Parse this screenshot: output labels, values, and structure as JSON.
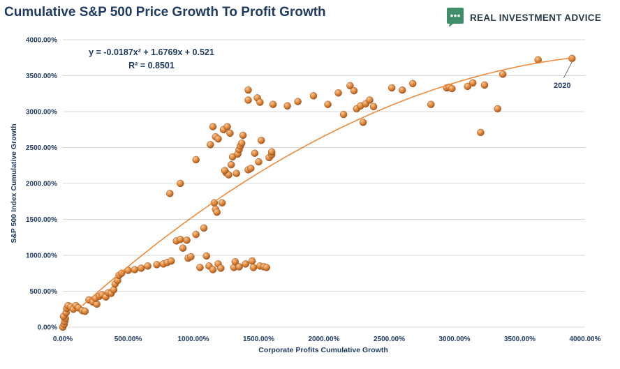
{
  "header": {
    "title": "Cumulative S&P 500 Price Growth To Profit Growth",
    "logo_text": "REAL INVESTMENT ADVICE",
    "logo_icon": "chat-bubble-icon",
    "logo_color": "#3f8f6b"
  },
  "chart_data": {
    "type": "scatter",
    "title": "Cumulative S&P 500 Price Growth To Profit Growth",
    "xlabel": "Corporate Profits Cumulative Growth",
    "ylabel": "S&P 500 Index Cumulative Growth",
    "xlim": [
      0,
      4000
    ],
    "ylim": [
      0,
      4000
    ],
    "x_ticks": [
      "0.00%",
      "500.00%",
      "1000.00%",
      "1500.00%",
      "2000.00%",
      "2500.00%",
      "3000.00%",
      "3500.00%",
      "4000.00%"
    ],
    "y_ticks": [
      "0.00%",
      "500.00%",
      "1000.00%",
      "1500.00%",
      "2000.00%",
      "2500.00%",
      "3000.00%",
      "3500.00%",
      "4000.00%"
    ],
    "grid": "horizontal",
    "point_color": "#d9823a",
    "trend_color": "#f08a3c",
    "trendline": {
      "equation": "y = -0.0187x² + 1.6769x + 0.521",
      "r_squared": "R² = 0.8501",
      "x_start": 150,
      "x_end": 3900
    },
    "annotation": {
      "label": "2020",
      "x": 3900,
      "y": 3740
    },
    "points": [
      [
        0,
        0
      ],
      [
        10,
        40
      ],
      [
        15,
        80
      ],
      [
        20,
        120
      ],
      [
        5,
        150
      ],
      [
        25,
        200
      ],
      [
        30,
        260
      ],
      [
        40,
        300
      ],
      [
        60,
        280
      ],
      [
        80,
        250
      ],
      [
        100,
        300
      ],
      [
        120,
        270
      ],
      [
        150,
        230
      ],
      [
        170,
        220
      ],
      [
        200,
        380
      ],
      [
        230,
        350
      ],
      [
        260,
        320
      ],
      [
        250,
        400
      ],
      [
        280,
        430
      ],
      [
        300,
        450
      ],
      [
        330,
        420
      ],
      [
        350,
        480
      ],
      [
        370,
        470
      ],
      [
        390,
        520
      ],
      [
        400,
        600
      ],
      [
        420,
        650
      ],
      [
        430,
        720
      ],
      [
        450,
        750
      ],
      [
        500,
        790
      ],
      [
        550,
        800
      ],
      [
        600,
        820
      ],
      [
        650,
        850
      ],
      [
        720,
        870
      ],
      [
        770,
        880
      ],
      [
        800,
        900
      ],
      [
        830,
        920
      ],
      [
        870,
        1200
      ],
      [
        900,
        1220
      ],
      [
        920,
        1100
      ],
      [
        950,
        1210
      ],
      [
        960,
        960
      ],
      [
        980,
        980
      ],
      [
        1020,
        1290
      ],
      [
        1050,
        830
      ],
      [
        1080,
        1380
      ],
      [
        1100,
        990
      ],
      [
        1120,
        850
      ],
      [
        1150,
        800
      ],
      [
        1160,
        1730
      ],
      [
        1170,
        1640
      ],
      [
        1180,
        1600
      ],
      [
        1190,
        880
      ],
      [
        1210,
        820
      ],
      [
        1220,
        1730
      ],
      [
        1250,
        2150
      ],
      [
        1270,
        2120
      ],
      [
        1290,
        2260
      ],
      [
        1300,
        2370
      ],
      [
        1310,
        830
      ],
      [
        1320,
        910
      ],
      [
        1330,
        2140
      ],
      [
        1350,
        840
      ],
      [
        1340,
        2410
      ],
      [
        1350,
        2470
      ],
      [
        1360,
        2520
      ],
      [
        1370,
        2560
      ],
      [
        1380,
        2670
      ],
      [
        1400,
        880
      ],
      [
        1420,
        2190
      ],
      [
        1440,
        2210
      ],
      [
        1450,
        920
      ],
      [
        1460,
        830
      ],
      [
        1470,
        2420
      ],
      [
        1500,
        2300
      ],
      [
        1510,
        850
      ],
      [
        1520,
        2600
      ],
      [
        1540,
        840
      ],
      [
        1560,
        830
      ],
      [
        1580,
        2360
      ],
      [
        1600,
        2400
      ],
      [
        1600,
        2440
      ],
      [
        1240,
        2180
      ],
      [
        1230,
        2750
      ],
      [
        1260,
        2790
      ],
      [
        1280,
        2700
      ],
      [
        1170,
        2650
      ],
      [
        1190,
        2620
      ],
      [
        1150,
        2790
      ],
      [
        1130,
        2540
      ],
      [
        1020,
        2330
      ],
      [
        900,
        2000
      ],
      [
        820,
        1860
      ],
      [
        1420,
        3300
      ],
      [
        1420,
        3160
      ],
      [
        1490,
        3190
      ],
      [
        1510,
        3130
      ],
      [
        1610,
        3100
      ],
      [
        1720,
        3080
      ],
      [
        1800,
        3140
      ],
      [
        1920,
        3220
      ],
      [
        2030,
        3100
      ],
      [
        2110,
        3260
      ],
      [
        2150,
        2960
      ],
      [
        2200,
        3360
      ],
      [
        2230,
        3290
      ],
      [
        2250,
        3040
      ],
      [
        2280,
        3080
      ],
      [
        2300,
        2850
      ],
      [
        2320,
        3110
      ],
      [
        2350,
        3160
      ],
      [
        2380,
        3070
      ],
      [
        2520,
        3330
      ],
      [
        2600,
        3300
      ],
      [
        2680,
        3390
      ],
      [
        2820,
        3100
      ],
      [
        2940,
        3330
      ],
      [
        2960,
        3340
      ],
      [
        2980,
        3320
      ],
      [
        3100,
        3350
      ],
      [
        3140,
        3400
      ],
      [
        3200,
        2710
      ],
      [
        3230,
        3370
      ],
      [
        3330,
        3040
      ],
      [
        3370,
        3520
      ],
      [
        3640,
        3720
      ],
      [
        3900,
        3740
      ]
    ]
  }
}
